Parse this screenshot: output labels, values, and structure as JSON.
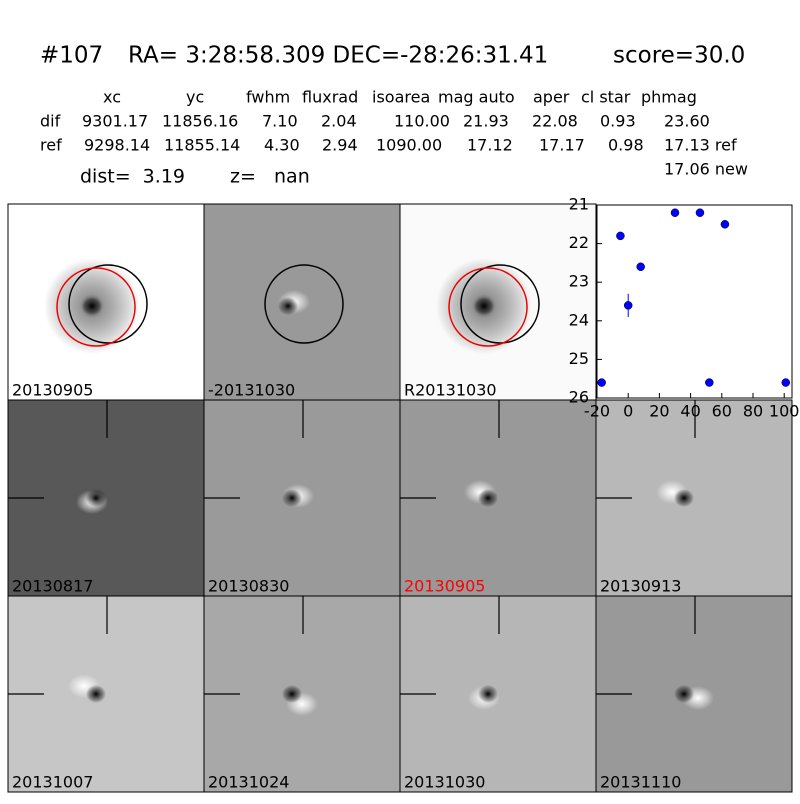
{
  "header": {
    "id": "#107",
    "coords": "RA= 3:28:58.309 DEC=-28:26:31.41",
    "score": "score=30.0"
  },
  "table": {
    "columns": [
      "xc",
      "yc",
      "fwhm",
      "fluxrad",
      "isoarea",
      "mag auto",
      "aper",
      "cl star",
      "phmag"
    ],
    "rows": [
      [
        "dif",
        "9301.17",
        "11856.16",
        "7.10",
        "2.04",
        "110.00",
        "21.93",
        "22.08",
        "0.93",
        "23.60"
      ],
      [
        "ref",
        "9298.14",
        "11855.14",
        "4.30",
        "2.94",
        "1090.00",
        "17.12",
        "17.17",
        "0.98",
        "17.13 ref"
      ]
    ],
    "note": "17.06 new"
  },
  "dist": "dist=  3.19",
  "z": "z=   nan",
  "panels": [
    {
      "label": "20130905"
    },
    {
      "label": "-20131030"
    },
    {
      "label": "R20131030"
    },
    {
      "label": "20130817"
    },
    {
      "label": "20130830"
    },
    {
      "label": "20130905",
      "color": "#ff0000"
    },
    {
      "label": "20130913"
    },
    {
      "label": "20131007"
    },
    {
      "label": "20131024"
    },
    {
      "label": "20131030"
    },
    {
      "label": "20131110"
    }
  ],
  "chart_data": {
    "type": "scatter",
    "color": "#0000ff",
    "invert_y": true,
    "x": [
      -17,
      -5,
      0,
      8,
      30,
      46,
      52,
      62,
      101
    ],
    "values": [
      25.6,
      21.8,
      23.6,
      22.6,
      21.2,
      21.2,
      25.6,
      21.5,
      25.6
    ],
    "errors": [
      0.05,
      0.05,
      0.3,
      0.08,
      0.05,
      0.05,
      0.05,
      0.05,
      0.05
    ],
    "xlim": [
      -20,
      105
    ],
    "xticks": [
      -20,
      0,
      20,
      40,
      60,
      80,
      100
    ],
    "ylim": [
      21,
      26
    ],
    "yticks": [
      21,
      22,
      23,
      24,
      25,
      26
    ]
  }
}
